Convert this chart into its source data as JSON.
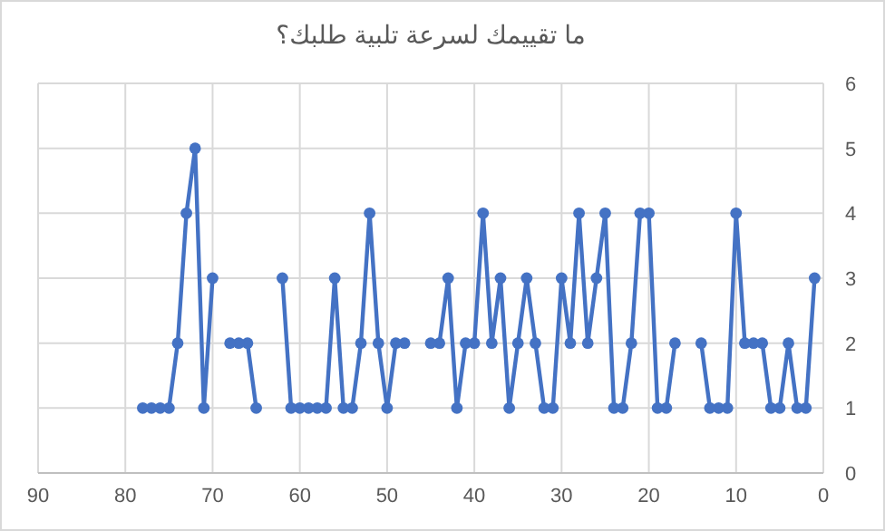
{
  "chart_data": {
    "type": "line",
    "title": "ما تقييمك لسرعة تلبية طلبك؟",
    "x": [
      1,
      2,
      3,
      4,
      5,
      6,
      7,
      8,
      9,
      10,
      11,
      12,
      13,
      14,
      15,
      16,
      17,
      18,
      19,
      20,
      21,
      22,
      23,
      24,
      25,
      26,
      27,
      28,
      29,
      30,
      31,
      32,
      33,
      34,
      35,
      36,
      37,
      38,
      39,
      40,
      41,
      42,
      43,
      44,
      45,
      46,
      47,
      48,
      49,
      50,
      51,
      52,
      53,
      54,
      55,
      56,
      57,
      58,
      59,
      60,
      61,
      62,
      63,
      64,
      65,
      66,
      67,
      68,
      69,
      70,
      71,
      72,
      73,
      74,
      75,
      76,
      77,
      78
    ],
    "series": [
      {
        "color": "#4472c4",
        "values": [
          3,
          1,
          1,
          2,
          1,
          1,
          2,
          2,
          2,
          4,
          1,
          1,
          1,
          2,
          null,
          null,
          2,
          1,
          1,
          4,
          4,
          2,
          1,
          1,
          4,
          3,
          2,
          4,
          2,
          3,
          1,
          1,
          2,
          3,
          2,
          1,
          3,
          2,
          4,
          2,
          2,
          1,
          3,
          2,
          2,
          null,
          null,
          2,
          2,
          1,
          2,
          4,
          2,
          1,
          1,
          3,
          1,
          1,
          1,
          1,
          1,
          3,
          null,
          null,
          1,
          2,
          2,
          2,
          null,
          3,
          1,
          5,
          4,
          2,
          1,
          1,
          1,
          1
        ]
      }
    ],
    "xlim": [
      90,
      0
    ],
    "xticks": [
      90,
      80,
      70,
      60,
      50,
      40,
      30,
      20,
      10,
      0
    ],
    "ylim": [
      0,
      6
    ],
    "yticks": [
      0,
      1,
      2,
      3,
      4,
      5,
      6
    ],
    "grid": true,
    "marker": "circle",
    "line_style": "solid"
  }
}
